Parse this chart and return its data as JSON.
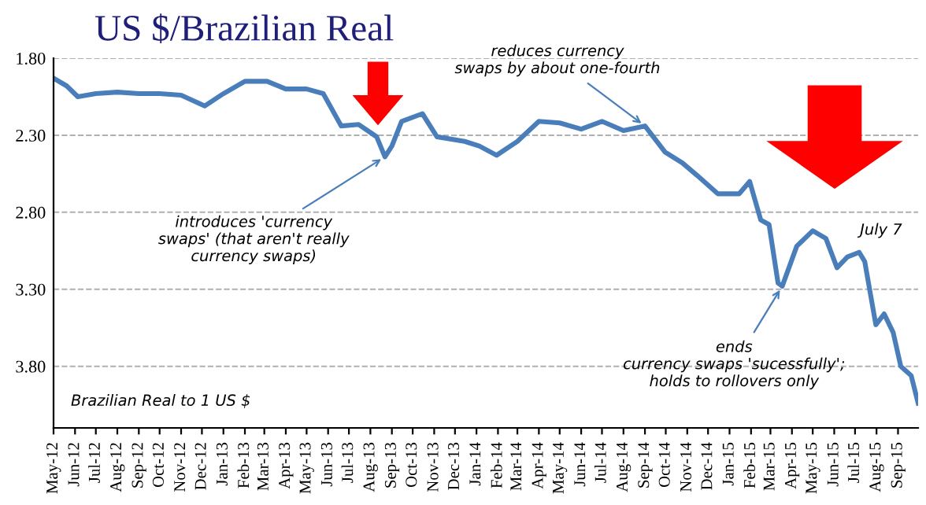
{
  "chart_data": {
    "type": "line",
    "title": "US $/Brazilian Real",
    "x": [
      "2012-05-01",
      "2012-05-20",
      "2012-06-05",
      "2012-07-01",
      "2012-08-01",
      "2012-09-01",
      "2012-10-01",
      "2012-11-01",
      "2012-12-05",
      "2013-01-01",
      "2013-02-01",
      "2013-03-05",
      "2013-04-01",
      "2013-05-01",
      "2013-05-25",
      "2013-06-20",
      "2013-07-15",
      "2013-08-10",
      "2013-08-22",
      "2013-09-01",
      "2013-09-15",
      "2013-10-15",
      "2013-11-05",
      "2013-12-15",
      "2014-01-05",
      "2014-01-30",
      "2014-03-01",
      "2014-04-01",
      "2014-05-01",
      "2014-06-01",
      "2014-07-01",
      "2014-08-01",
      "2014-09-01",
      "2014-09-30",
      "2014-10-25",
      "2014-11-15",
      "2014-12-15",
      "2015-01-15",
      "2015-01-30",
      "2015-02-15",
      "2015-02-27",
      "2015-03-12",
      "2015-03-18",
      "2015-04-08",
      "2015-05-01",
      "2015-05-20",
      "2015-06-05",
      "2015-06-20",
      "2015-07-07",
      "2015-07-15",
      "2015-07-31",
      "2015-08-12",
      "2015-08-25",
      "2015-09-05",
      "2015-09-20",
      "2015-09-30"
    ],
    "series": [
      {
        "color": "#4a7ebb",
        "values": [
          1.93,
          1.98,
          2.05,
          2.03,
          2.02,
          2.03,
          2.03,
          2.04,
          2.11,
          2.03,
          1.95,
          1.95,
          2.0,
          2.0,
          2.03,
          2.24,
          2.23,
          2.31,
          2.44,
          2.37,
          2.21,
          2.16,
          2.31,
          2.34,
          2.37,
          2.43,
          2.34,
          2.21,
          2.22,
          2.26,
          2.21,
          2.27,
          2.24,
          2.41,
          2.48,
          2.56,
          2.68,
          2.68,
          2.6,
          2.85,
          2.88,
          3.26,
          3.28,
          3.02,
          2.92,
          2.97,
          3.16,
          3.09,
          3.06,
          3.12,
          3.53,
          3.46,
          3.58,
          3.8,
          3.86,
          4.04
        ]
      }
    ],
    "ylim": [
      4.2,
      1.8
    ],
    "yticks": [
      {
        "value": 1.8,
        "label": "1.80"
      },
      {
        "value": 2.3,
        "label": "2.30"
      },
      {
        "value": 2.8,
        "label": "2.80"
      },
      {
        "value": 3.3,
        "label": "3.30"
      },
      {
        "value": 3.8,
        "label": "3.80"
      }
    ],
    "xlim": [
      "2012-05-01",
      "2015-09-30"
    ],
    "xticks": [
      {
        "value": "2012-05-01",
        "label": "May-12"
      },
      {
        "value": "2012-06-01",
        "label": "Jun-12"
      },
      {
        "value": "2012-07-01",
        "label": "Jul-12"
      },
      {
        "value": "2012-08-01",
        "label": "Aug-12"
      },
      {
        "value": "2012-09-01",
        "label": "Sep-12"
      },
      {
        "value": "2012-10-01",
        "label": "Oct-12"
      },
      {
        "value": "2012-11-01",
        "label": "Nov-12"
      },
      {
        "value": "2012-12-01",
        "label": "Dec-12"
      },
      {
        "value": "2013-01-01",
        "label": "Jan-13"
      },
      {
        "value": "2013-02-01",
        "label": "Feb-13"
      },
      {
        "value": "2013-03-01",
        "label": "Mar-13"
      },
      {
        "value": "2013-04-01",
        "label": "Apr-13"
      },
      {
        "value": "2013-05-01",
        "label": "May-13"
      },
      {
        "value": "2013-06-01",
        "label": "Jun-13"
      },
      {
        "value": "2013-07-01",
        "label": "Jul-13"
      },
      {
        "value": "2013-08-01",
        "label": "Aug-13"
      },
      {
        "value": "2013-09-01",
        "label": "Sep-13"
      },
      {
        "value": "2013-10-01",
        "label": "Oct-13"
      },
      {
        "value": "2013-11-01",
        "label": "Nov-13"
      },
      {
        "value": "2013-12-01",
        "label": "Dec-13"
      },
      {
        "value": "2014-01-01",
        "label": "Jan-14"
      },
      {
        "value": "2014-02-01",
        "label": "Feb-14"
      },
      {
        "value": "2014-03-01",
        "label": "Mar-14"
      },
      {
        "value": "2014-04-01",
        "label": "Apr-14"
      },
      {
        "value": "2014-05-01",
        "label": "May-14"
      },
      {
        "value": "2014-06-01",
        "label": "Jun-14"
      },
      {
        "value": "2014-07-01",
        "label": "Jul-14"
      },
      {
        "value": "2014-08-01",
        "label": "Aug-14"
      },
      {
        "value": "2014-09-01",
        "label": "Sep-14"
      },
      {
        "value": "2014-10-01",
        "label": "Oct-14"
      },
      {
        "value": "2014-11-01",
        "label": "Nov-14"
      },
      {
        "value": "2014-12-01",
        "label": "Dec-14"
      },
      {
        "value": "2015-01-01",
        "label": "Jan-15"
      },
      {
        "value": "2015-02-01",
        "label": "Feb-15"
      },
      {
        "value": "2015-03-01",
        "label": "Mar-15"
      },
      {
        "value": "2015-04-01",
        "label": "Apr-15"
      },
      {
        "value": "2015-05-01",
        "label": "May-15"
      },
      {
        "value": "2015-06-01",
        "label": "Jun-15"
      },
      {
        "value": "2015-07-01",
        "label": "Jul-15"
      },
      {
        "value": "2015-08-01",
        "label": "Aug-15"
      },
      {
        "value": "2015-09-01",
        "label": "Sep-15"
      }
    ],
    "grid": "y",
    "line_style": "solid",
    "marker": "none",
    "annotations": [
      {
        "text": "introduces 'currency\nswaps' (that aren't really\ncurrency swaps)",
        "x": "2013-08-22",
        "y": 2.44
      },
      {
        "text": "reduces currency\nswaps by about one-fourth",
        "x": "2014-09-01",
        "y": 2.24
      },
      {
        "text": "ends\ncurrency swaps 'sucessfully';\nholds to rollovers only",
        "x": "2015-03-18",
        "y": 3.28
      },
      {
        "text": "July 7",
        "x": "2015-07-07",
        "y": 3.06
      },
      "Brazilian Real to 1 US $"
    ]
  }
}
